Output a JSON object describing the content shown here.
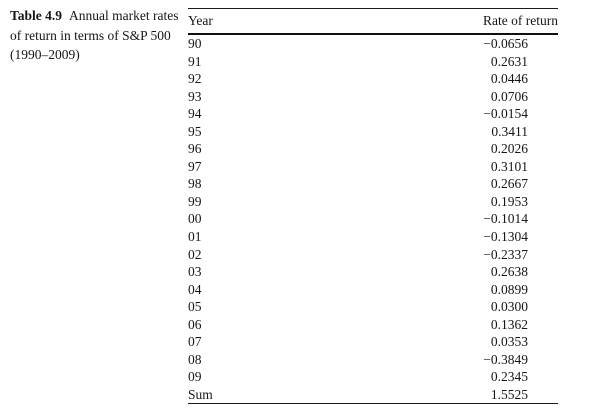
{
  "caption": {
    "label": "Table 4.9",
    "text": "Annual market rates of return in terms of S&P 500 (1990–2009)"
  },
  "table": {
    "columns": [
      "Year",
      "Rate of return"
    ],
    "rows": [
      [
        "90",
        "−0.0656"
      ],
      [
        "91",
        "0.2631"
      ],
      [
        "92",
        "0.0446"
      ],
      [
        "93",
        "0.0706"
      ],
      [
        "94",
        "−0.0154"
      ],
      [
        "95",
        "0.3411"
      ],
      [
        "96",
        "0.2026"
      ],
      [
        "97",
        "0.3101"
      ],
      [
        "98",
        "0.2667"
      ],
      [
        "99",
        "0.1953"
      ],
      [
        "00",
        "−0.1014"
      ],
      [
        "01",
        "−0.1304"
      ],
      [
        "02",
        "−0.2337"
      ],
      [
        "03",
        "0.2638"
      ],
      [
        "04",
        "0.0899"
      ],
      [
        "05",
        "0.0300"
      ],
      [
        "06",
        "0.1362"
      ],
      [
        "07",
        "0.0353"
      ],
      [
        "08",
        "−0.3849"
      ],
      [
        "09",
        "0.2345"
      ],
      [
        "Sum",
        "1.5525"
      ]
    ]
  }
}
